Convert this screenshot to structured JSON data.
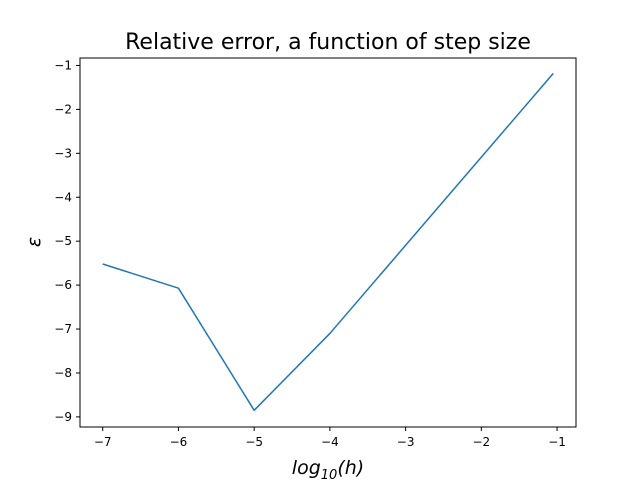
{
  "chart_data": {
    "type": "line",
    "title": "Relative error, a function of step size",
    "xlabel": {
      "base": "log",
      "subscript": "10",
      "suffix": "(h)"
    },
    "ylabel": "ε",
    "x": [
      -7,
      -6,
      -5,
      -4,
      -1.05
    ],
    "series": [
      {
        "values": [
          -5.52,
          -6.07,
          -8.85,
          -7.1,
          -1.18
        ],
        "color": "#1f77b4"
      }
    ],
    "xlim": [
      -7.3,
      -0.75
    ],
    "ylim": [
      -9.23,
      -0.83
    ],
    "xticks": [
      -7,
      -6,
      -5,
      -4,
      -3,
      -2,
      -1
    ],
    "xtick_labels": [
      "−7",
      "−6",
      "−5",
      "−4",
      "−3",
      "−2",
      "−1"
    ],
    "yticks": [
      -9,
      -8,
      -7,
      -6,
      -5,
      -4,
      -3,
      -2,
      -1
    ],
    "ytick_labels": [
      "−9",
      "−8",
      "−7",
      "−6",
      "−5",
      "−4",
      "−3",
      "−2",
      "−1"
    ],
    "grid": false,
    "legend": "none"
  }
}
